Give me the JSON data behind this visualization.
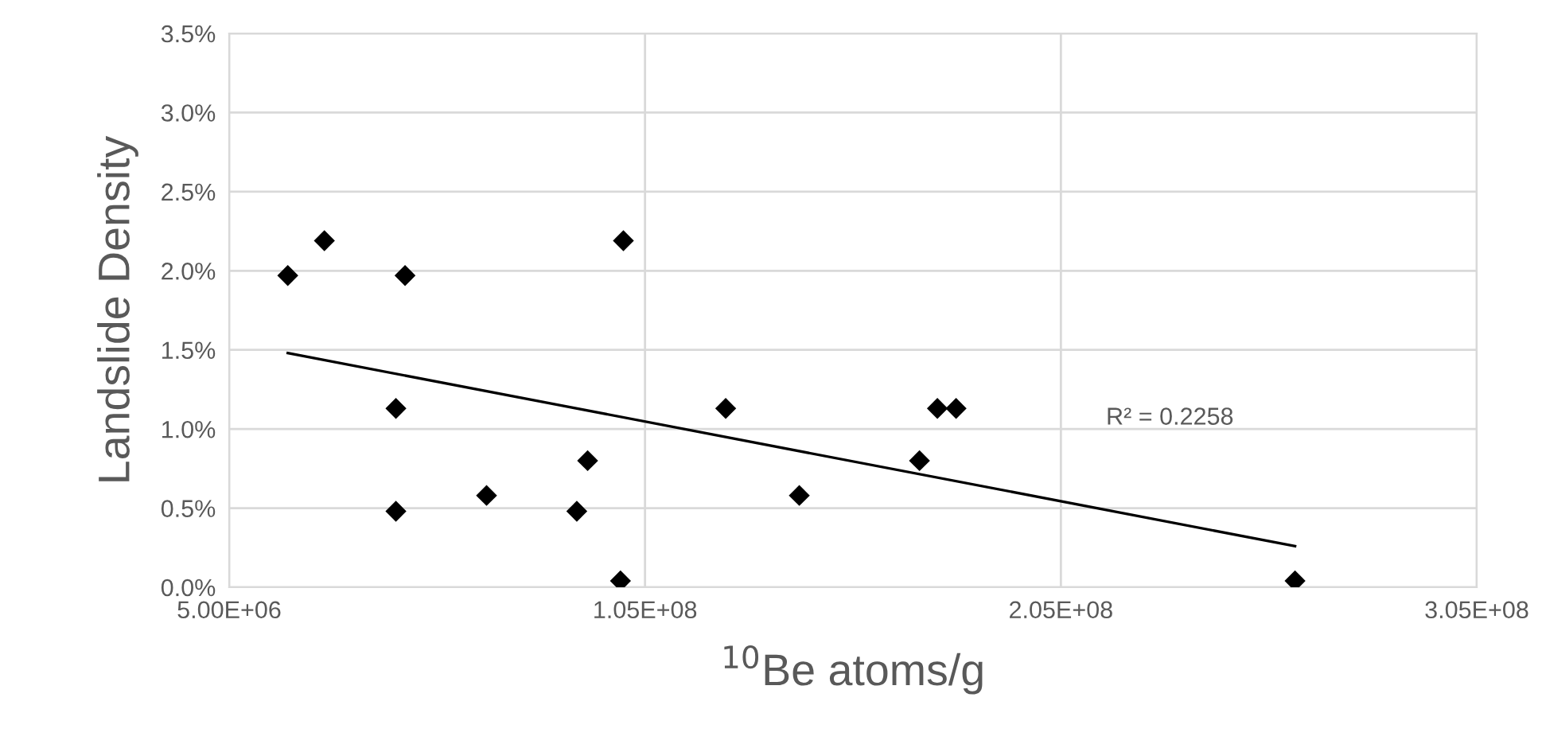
{
  "chart_data": {
    "type": "scatter",
    "xlabel": "$^{10}$Be atoms/g",
    "ylabel": "Landslide Density",
    "series": [
      {
        "color": "#000000",
        "marker": "diamond",
        "x": [
          19100000.0,
          27900000.0,
          45100000.0,
          45100000.0,
          47300000.0,
          66900000.0,
          88600000.0,
          91200000.0,
          99100000.0,
          99800000.0,
          124400000.0,
          142100000.0,
          171000000.0,
          175300000.0,
          179800000.0,
          261300000.0
        ],
        "values": [
          1.97,
          2.19,
          1.13,
          0.48,
          1.97,
          0.58,
          0.48,
          0.8,
          0.04,
          2.19,
          1.13,
          0.58,
          0.8,
          1.13,
          1.13,
          0.04
        ]
      },
      {
        "type": "line",
        "color": "#000000",
        "marker": "none",
        "line_style": "solid",
        "x": [
          19100000.0,
          261300000.0
        ],
        "values": [
          1.48,
          0.26
        ]
      }
    ],
    "annotations": [
      "R² = 0.2258"
    ],
    "xlim": [
      5000000,
      305000000
    ],
    "xticks": [
      {
        "value": 5000000,
        "label": "5.00E+06"
      },
      {
        "value": 105000000,
        "label": "1.05E+08"
      },
      {
        "value": 205000000,
        "label": "2.05E+08"
      },
      {
        "value": 305000000,
        "label": "3.05E+08"
      }
    ],
    "ylim": [
      0,
      3.5
    ],
    "yticks": [
      {
        "value": 0,
        "label": "0.0%"
      },
      {
        "value": 0.5,
        "label": "0.5%"
      },
      {
        "value": 1.0,
        "label": "1.0%"
      },
      {
        "value": 1.5,
        "label": "1.5%"
      },
      {
        "value": 2.0,
        "label": "2.0%"
      },
      {
        "value": 2.5,
        "label": "2.5%"
      },
      {
        "value": 3.0,
        "label": "3.0%"
      },
      {
        "value": 3.5,
        "label": "3.5%"
      }
    ],
    "grid": true
  }
}
